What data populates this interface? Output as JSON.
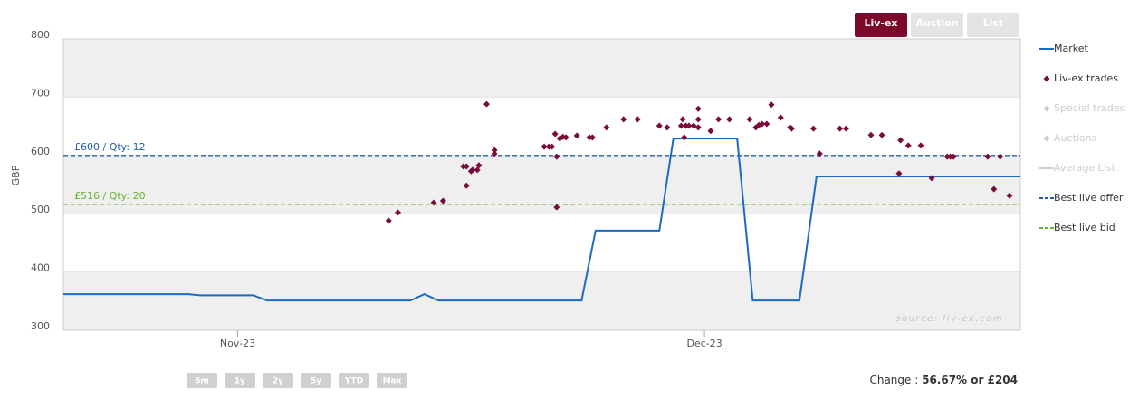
{
  "chart_data": {
    "type": "line",
    "y_label": "GBP",
    "ylim": [
      300,
      800
    ],
    "yticks": [
      300,
      400,
      500,
      600,
      700,
      800
    ],
    "xlim": [
      0,
      61.5
    ],
    "xticks": [
      {
        "value": 11.2,
        "label": "Nov-23"
      },
      {
        "value": 41.2,
        "label": "Dec-23"
      }
    ],
    "grid": true,
    "legend_position": "right",
    "series": [
      {
        "name": "Market",
        "type": "line",
        "color": "#1a6bc1",
        "x": [
          0,
          8.0,
          8.8,
          12.2,
          13.1,
          22.3,
          23.2,
          24.1,
          33.3,
          34.2,
          38.3,
          39.2,
          43.3,
          44.3,
          47.3,
          48.4,
          61.5
        ],
        "values": [
          362,
          362,
          360,
          360,
          351,
          351,
          362,
          351,
          351,
          471,
          471,
          629,
          629,
          351,
          351,
          564,
          564
        ]
      },
      {
        "name": "Liv-ex trades",
        "type": "scatter",
        "color": "#7a0b3a",
        "x": [
          20.9,
          21.5,
          23.8,
          24.4,
          25.7,
          25.9,
          25.9,
          26.2,
          26.3,
          26.6,
          26.7,
          27.2,
          27.7,
          27.7,
          30.9,
          31.2,
          31.4,
          31.6,
          31.7,
          31.7,
          31.9,
          32.1,
          32.3,
          33.0,
          33.8,
          34.0,
          34.9,
          36.0,
          36.9,
          38.3,
          38.8,
          39.7,
          39.8,
          39.9,
          40.0,
          40.2,
          40.5,
          40.8,
          40.8,
          40.8,
          41.6,
          42.1,
          42.8,
          44.1,
          44.5,
          44.7,
          44.9,
          45.2,
          45.5,
          46.1,
          46.7,
          46.8,
          48.2,
          48.6,
          49.9,
          50.3,
          51.9,
          52.6,
          53.8,
          53.7,
          54.3,
          55.1,
          55.8,
          56.8,
          57.0,
          57.2,
          59.4,
          59.8,
          60.2,
          60.8
        ],
        "values": [
          488,
          502,
          519,
          522,
          581,
          581,
          548,
          573,
          575,
          575,
          583,
          688,
          609,
          603,
          615,
          615,
          615,
          637,
          598,
          511,
          629,
          632,
          631,
          634,
          631,
          631,
          648,
          662,
          662,
          651,
          648,
          651,
          662,
          631,
          651,
          651,
          651,
          662,
          680,
          648,
          642,
          662,
          662,
          662,
          648,
          652,
          654,
          654,
          687,
          665,
          648,
          646,
          646,
          603,
          646,
          646,
          635,
          635,
          626,
          569,
          617,
          617,
          561,
          598,
          598,
          598,
          598,
          542,
          598,
          531
        ]
      },
      {
        "name": "Special trades",
        "type": "scatter",
        "color": "#cccccc",
        "x": [],
        "values": []
      },
      {
        "name": "Auctions",
        "type": "scatter",
        "color": "#cccccc",
        "x": [],
        "values": []
      },
      {
        "name": "Average List",
        "type": "line",
        "color": "#cccccc",
        "x": [],
        "values": []
      }
    ],
    "reference_lines": [
      {
        "name": "Best live offer",
        "value": 600,
        "label": "£600 / Qty: 12",
        "color": "#1f5fa8"
      },
      {
        "name": "Best live bid",
        "value": 516,
        "label": "£516 / Qty: 20",
        "color": "#66b32e"
      }
    ],
    "source": "source: liv-ex.com",
    "view_buttons": [
      "Liv-ex",
      "Auction",
      "List"
    ],
    "range_buttons": [
      "6m",
      "1y",
      "2y",
      "5y",
      "YTD",
      "Max"
    ],
    "change": {
      "label": "Change :",
      "value": "56.67% or £204"
    }
  }
}
